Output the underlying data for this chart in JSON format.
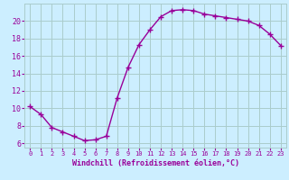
{
  "x": [
    0,
    1,
    2,
    3,
    4,
    5,
    6,
    7,
    8,
    9,
    10,
    11,
    12,
    13,
    14,
    15,
    16,
    17,
    18,
    19,
    20,
    21,
    22,
    23
  ],
  "y": [
    10.2,
    9.3,
    7.8,
    7.3,
    6.8,
    6.3,
    6.4,
    6.8,
    11.2,
    14.7,
    17.3,
    19.0,
    20.5,
    21.2,
    21.3,
    21.2,
    20.8,
    20.6,
    20.4,
    20.2,
    20.0,
    19.5,
    18.5,
    17.2
  ],
  "line_color": "#990099",
  "marker": "+",
  "marker_size": 4,
  "bg_color": "#cceeff",
  "grid_color": "#aacccc",
  "xlabel": "Windchill (Refroidissement éolien,°C)",
  "ylabel_ticks": [
    6,
    8,
    10,
    12,
    14,
    16,
    18,
    20
  ],
  "xlim": [
    -0.5,
    23.5
  ],
  "ylim": [
    5.5,
    22.0
  ],
  "xtick_labels": [
    "0",
    "1",
    "2",
    "3",
    "4",
    "5",
    "6",
    "7",
    "8",
    "9",
    "10",
    "11",
    "12",
    "13",
    "14",
    "15",
    "16",
    "17",
    "18",
    "19",
    "20",
    "21",
    "22",
    "23"
  ]
}
